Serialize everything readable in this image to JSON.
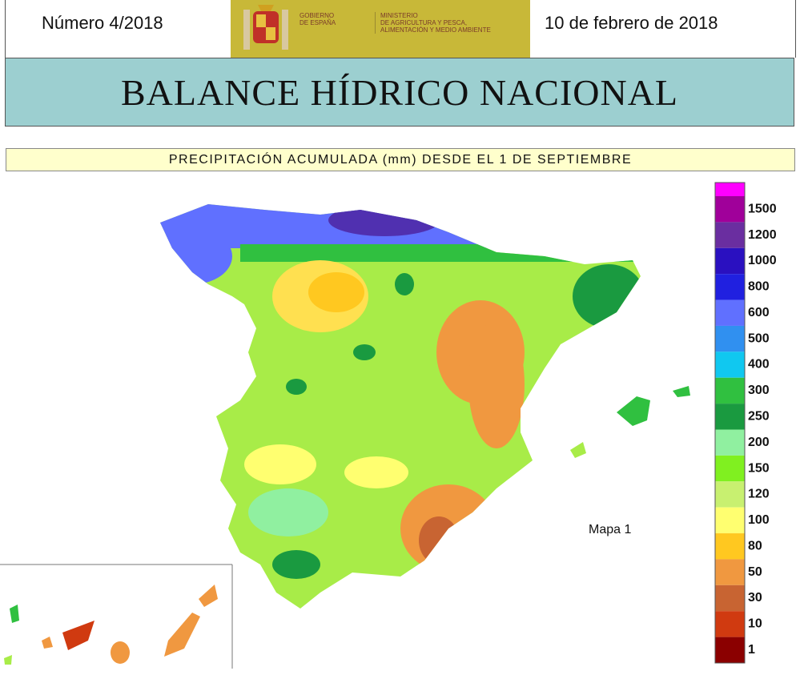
{
  "header": {
    "issue": "Número 4/2018",
    "date": "10 de febrero de 2018",
    "logo": {
      "government": [
        "GOBIERNO",
        "DE ESPAÑA"
      ],
      "ministry": [
        "MINISTERIO",
        "DE AGRICULTURA Y PESCA,",
        "ALIMENTACIÓN Y MEDIO AMBIENTE"
      ]
    }
  },
  "title": "BALANCE HÍDRICO NACIONAL",
  "subtitle": "PRECIPITACIÓN ACUMULADA (mm) DESDE EL 1 DE SEPTIEMBRE",
  "map": {
    "label": "Mapa 1",
    "legend": {
      "top_color": "#ff00ff",
      "items": [
        {
          "label": "1500",
          "color": "#a0009a"
        },
        {
          "label": "1200",
          "color": "#6a2ea0"
        },
        {
          "label": "1000",
          "color": "#2a10c0"
        },
        {
          "label": "800",
          "color": "#2020e0"
        },
        {
          "label": "600",
          "color": "#6070ff"
        },
        {
          "label": "500",
          "color": "#3090f0"
        },
        {
          "label": "400",
          "color": "#10c8f0"
        },
        {
          "label": "300",
          "color": "#30c040"
        },
        {
          "label": "250",
          "color": "#1a9a40"
        },
        {
          "label": "200",
          "color": "#90f0a0"
        },
        {
          "label": "150",
          "color": "#80f020"
        },
        {
          "label": "120",
          "color": "#c8f070"
        },
        {
          "label": "100",
          "color": "#ffff70"
        },
        {
          "label": "80",
          "color": "#ffc820"
        },
        {
          "label": "50",
          "color": "#f09840"
        },
        {
          "label": "30",
          "color": "#c86432"
        },
        {
          "label": "10",
          "color": "#d03a10"
        },
        {
          "label": "1",
          "color": "#8b0000"
        }
      ]
    }
  }
}
